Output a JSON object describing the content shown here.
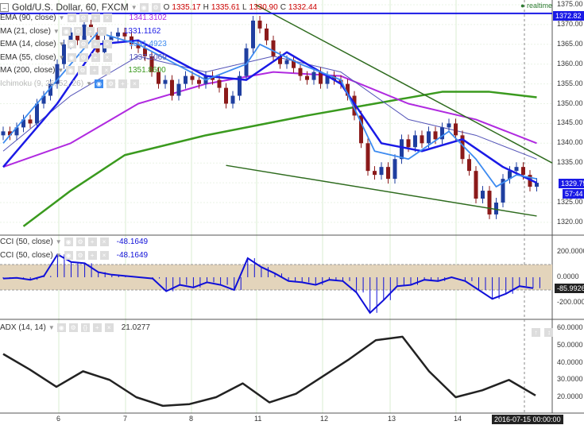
{
  "header": {
    "title": "Gold/U.S. Dollar, 60, FXCM",
    "o_label": "O",
    "open": "1335.17",
    "h_label": "H",
    "high": "1335.61",
    "l_label": "L",
    "low": "1330.90",
    "c_label": "C",
    "close": "1332.44",
    "realtime": "realtime"
  },
  "indicators": [
    {
      "name": "EMA (90, close)",
      "value": "1341.3102",
      "color": "#b02ae0"
    },
    {
      "name": "MA (21, close)",
      "value": "1331.1162",
      "color": "#1a1ae6"
    },
    {
      "name": "EMA (14, close)",
      "value": "1331.4923",
      "color": "#3d8bf0"
    },
    {
      "name": "EMA (55, close)",
      "value": "1337.5069",
      "color": "#5454b8"
    },
    {
      "name": "MA (200, close)",
      "value": "1351.8600",
      "color": "#3a9a1e"
    },
    {
      "name": "Ichimoku (9, 26, 52, 26)",
      "value": "",
      "color": "#999"
    }
  ],
  "cci": [
    {
      "name": "CCI (50, close)",
      "value": "-48.1649"
    },
    {
      "name": "CCI (50, close)",
      "value": "-48.1649"
    }
  ],
  "adx": {
    "name": "ADX (14, 14)",
    "value": "21.0277"
  },
  "price_axis": [
    "1375.00",
    "1370.00",
    "1365.00",
    "1360.00",
    "1355.00",
    "1350.00",
    "1345.00",
    "1340.00",
    "1335.00",
    "1325.00",
    "1320.00"
  ],
  "price_tags": {
    "hline": "1372.82",
    "last": "1329.75",
    "countdown": "57:44"
  },
  "cci_axis": [
    "200.0000",
    "0.0000",
    "-200.0000"
  ],
  "cci_tag": "-85.9926",
  "adx_axis": [
    "60.0000",
    "50.0000",
    "40.0000",
    "30.0000",
    "20.0000"
  ],
  "time_axis": [
    "6",
    "7",
    "8",
    "11",
    "12",
    "13",
    "14"
  ],
  "time_cursor": "2016-07-15 00:00:00",
  "colors": {
    "up": "#1f3fa0",
    "down": "#8b1a1a",
    "trend": "#2e6b1e",
    "hline": "#1a1ae6",
    "cci": "#1010d8",
    "band": "#e3d4bb",
    "adx": "#222"
  },
  "chart_data": {
    "type": "line",
    "closes": [
      1343,
      1342,
      1344,
      1346,
      1345,
      1350,
      1352,
      1355,
      1360,
      1365,
      1368,
      1366,
      1370,
      1368,
      1363,
      1366,
      1367,
      1368,
      1367,
      1365,
      1364,
      1362,
      1358,
      1355,
      1356,
      1352,
      1355,
      1357,
      1356,
      1355,
      1357,
      1356,
      1354,
      1350,
      1352,
      1357,
      1364,
      1371,
      1369,
      1366,
      1362,
      1360,
      1361,
      1359,
      1357,
      1356,
      1358,
      1355,
      1357,
      1356,
      1355,
      1352,
      1347,
      1340,
      1333,
      1332,
      1334,
      1331,
      1336,
      1341,
      1339,
      1342,
      1340,
      1343,
      1341,
      1344,
      1345,
      1342,
      1336,
      1333,
      1326,
      1328,
      1322,
      1325,
      1331,
      1333,
      1334,
      1332,
      1329,
      1330
    ],
    "ma200": [
      [
        3,
        1319
      ],
      [
        10,
        1328
      ],
      [
        18,
        1337
      ],
      [
        30,
        1342
      ],
      [
        45,
        1347
      ],
      [
        55,
        1350
      ],
      [
        65,
        1353
      ],
      [
        72,
        1353
      ],
      [
        79,
        1351.6
      ]
    ],
    "ema90": [
      [
        0,
        1334
      ],
      [
        10,
        1340
      ],
      [
        20,
        1350
      ],
      [
        30,
        1355
      ],
      [
        40,
        1358
      ],
      [
        50,
        1357
      ],
      [
        60,
        1350
      ],
      [
        70,
        1346
      ],
      [
        79,
        1340
      ]
    ],
    "ema55": [
      [
        0,
        1338
      ],
      [
        10,
        1352
      ],
      [
        20,
        1362
      ],
      [
        30,
        1358
      ],
      [
        40,
        1362
      ],
      [
        50,
        1358
      ],
      [
        60,
        1346
      ],
      [
        70,
        1342
      ],
      [
        79,
        1336
      ]
    ],
    "ma21": [
      [
        0,
        1334
      ],
      [
        8,
        1350
      ],
      [
        14,
        1365
      ],
      [
        20,
        1366
      ],
      [
        30,
        1357
      ],
      [
        36,
        1356
      ],
      [
        42,
        1363
      ],
      [
        50,
        1355
      ],
      [
        56,
        1340
      ],
      [
        62,
        1338
      ],
      [
        68,
        1341
      ],
      [
        74,
        1334
      ],
      [
        79,
        1330
      ]
    ],
    "ema14": [
      [
        0,
        1340
      ],
      [
        8,
        1356
      ],
      [
        14,
        1368
      ],
      [
        20,
        1365
      ],
      [
        30,
        1356
      ],
      [
        36,
        1360
      ],
      [
        38,
        1365
      ],
      [
        44,
        1360
      ],
      [
        50,
        1356
      ],
      [
        55,
        1338
      ],
      [
        60,
        1336
      ],
      [
        66,
        1343
      ],
      [
        70,
        1336
      ],
      [
        73,
        1329
      ],
      [
        76,
        1332
      ],
      [
        79,
        1331
      ]
    ],
    "trend_upper": [
      [
        37.4,
        1375
      ],
      [
        81.3,
        1335
      ]
    ],
    "trend_lower": [
      [
        33,
        1334.4
      ],
      [
        79,
        1321.6
      ]
    ],
    "cci_values": [
      -10,
      -5,
      -20,
      10,
      180,
      120,
      110,
      40,
      20,
      10,
      0,
      -10,
      -110,
      -60,
      -80,
      -40,
      -60,
      -100,
      150,
      80,
      30,
      -30,
      -40,
      -60,
      -20,
      -30,
      -120,
      -280,
      -180,
      -70,
      -60,
      -20,
      -30,
      0,
      -30,
      -100,
      -170,
      -130,
      -70,
      -86
    ],
    "adx_values": [
      45,
      36,
      26,
      35,
      30,
      20,
      15,
      16,
      20,
      28,
      17,
      22,
      32,
      42,
      53,
      55,
      35,
      20,
      24,
      30,
      21
    ],
    "price_range": [
      1318,
      1376
    ],
    "cci_band": [
      -100,
      100
    ]
  }
}
